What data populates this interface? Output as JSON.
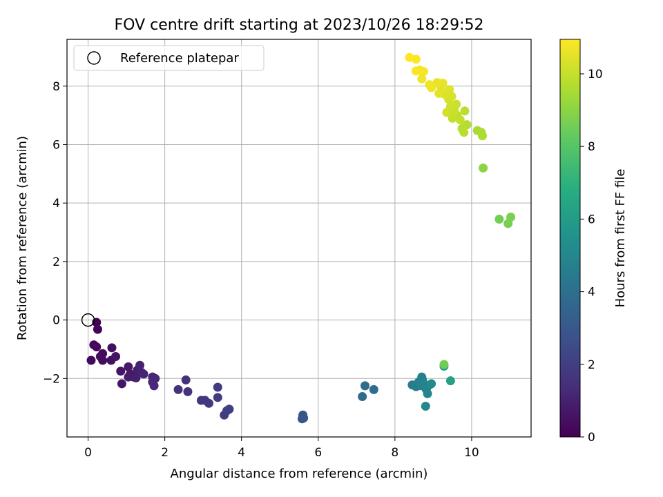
{
  "chart_data": {
    "type": "scatter",
    "title": "FOV centre drift starting at 2023/10/26 18:29:52",
    "xlabel": "Angular distance from reference (arcmin)",
    "ylabel": "Rotation from reference (arcmin)",
    "xlim": [
      -0.55,
      11.55
    ],
    "ylim": [
      -4.0,
      9.6
    ],
    "xticks": [
      0,
      2,
      4,
      6,
      8,
      10
    ],
    "yticks": [
      -2,
      0,
      2,
      4,
      6,
      8
    ],
    "grid": true,
    "legend": {
      "placement": "top-left",
      "entries": [
        "Reference platepar"
      ]
    },
    "reference_point": {
      "x": 0,
      "y": 0
    },
    "colorbar": {
      "label": "Hours from first FF file",
      "range": [
        0,
        10.95
      ],
      "ticks": [
        0,
        2,
        4,
        6,
        8,
        10
      ],
      "colormap": "viridis"
    },
    "points": [
      {
        "x": 0.22,
        "y": -0.08,
        "t": 0.05
      },
      {
        "x": 0.25,
        "y": -0.32,
        "t": 0.1
      },
      {
        "x": 0.15,
        "y": -0.85,
        "t": 0.15
      },
      {
        "x": 0.22,
        "y": -0.92,
        "t": 0.2
      },
      {
        "x": 0.08,
        "y": -1.38,
        "t": 0.25
      },
      {
        "x": 0.38,
        "y": -1.15,
        "t": 0.3
      },
      {
        "x": 0.38,
        "y": -1.38,
        "t": 0.35
      },
      {
        "x": 0.32,
        "y": -1.25,
        "t": 0.35
      },
      {
        "x": 0.62,
        "y": -0.95,
        "t": 0.45
      },
      {
        "x": 0.6,
        "y": -1.38,
        "t": 0.5
      },
      {
        "x": 0.72,
        "y": -1.25,
        "t": 0.55
      },
      {
        "x": 0.85,
        "y": -1.75,
        "t": 0.6
      },
      {
        "x": 0.88,
        "y": -2.18,
        "t": 0.65
      },
      {
        "x": 1.05,
        "y": -1.6,
        "t": 0.7
      },
      {
        "x": 1.1,
        "y": -1.85,
        "t": 0.75
      },
      {
        "x": 1.18,
        "y": -1.95,
        "t": 0.8
      },
      {
        "x": 1.05,
        "y": -1.95,
        "t": 0.85
      },
      {
        "x": 1.28,
        "y": -1.72,
        "t": 0.9
      },
      {
        "x": 1.25,
        "y": -1.98,
        "t": 0.95
      },
      {
        "x": 1.35,
        "y": -1.55,
        "t": 1.0
      },
      {
        "x": 1.4,
        "y": -1.8,
        "t": 1.05
      },
      {
        "x": 1.45,
        "y": -1.85,
        "t": 1.1
      },
      {
        "x": 1.68,
        "y": -1.95,
        "t": 1.15
      },
      {
        "x": 1.75,
        "y": -2.0,
        "t": 1.2
      },
      {
        "x": 1.68,
        "y": -2.12,
        "t": 1.25
      },
      {
        "x": 1.72,
        "y": -2.25,
        "t": 1.3
      },
      {
        "x": 2.35,
        "y": -2.38,
        "t": 1.5
      },
      {
        "x": 2.55,
        "y": -2.05,
        "t": 1.55
      },
      {
        "x": 2.6,
        "y": -2.45,
        "t": 1.6
      },
      {
        "x": 2.95,
        "y": -2.75,
        "t": 1.7
      },
      {
        "x": 3.05,
        "y": -2.75,
        "t": 1.75
      },
      {
        "x": 3.15,
        "y": -2.85,
        "t": 1.8
      },
      {
        "x": 3.38,
        "y": -2.3,
        "t": 1.85
      },
      {
        "x": 3.38,
        "y": -2.65,
        "t": 1.9
      },
      {
        "x": 3.55,
        "y": -3.25,
        "t": 1.95
      },
      {
        "x": 3.62,
        "y": -3.1,
        "t": 2.0
      },
      {
        "x": 3.68,
        "y": -3.05,
        "t": 2.05
      },
      {
        "x": 5.6,
        "y": -3.25,
        "t": 2.8
      },
      {
        "x": 5.62,
        "y": -3.35,
        "t": 2.85
      },
      {
        "x": 5.58,
        "y": -3.38,
        "t": 2.9
      },
      {
        "x": 7.15,
        "y": -2.62,
        "t": 3.8
      },
      {
        "x": 7.22,
        "y": -2.25,
        "t": 3.85
      },
      {
        "x": 7.45,
        "y": -2.38,
        "t": 3.9
      },
      {
        "x": 8.45,
        "y": -2.22,
        "t": 4.5
      },
      {
        "x": 8.55,
        "y": -2.28,
        "t": 4.6
      },
      {
        "x": 8.62,
        "y": -2.12,
        "t": 4.65
      },
      {
        "x": 8.7,
        "y": -1.95,
        "t": 4.7
      },
      {
        "x": 8.72,
        "y": -2.05,
        "t": 4.75
      },
      {
        "x": 8.68,
        "y": -2.25,
        "t": 4.8
      },
      {
        "x": 8.75,
        "y": -2.2,
        "t": 4.85
      },
      {
        "x": 8.82,
        "y": -2.38,
        "t": 4.9
      },
      {
        "x": 8.85,
        "y": -2.52,
        "t": 4.95
      },
      {
        "x": 8.8,
        "y": -2.95,
        "t": 5.0
      },
      {
        "x": 8.9,
        "y": -2.22,
        "t": 5.05
      },
      {
        "x": 8.95,
        "y": -2.18,
        "t": 5.1
      },
      {
        "x": 9.28,
        "y": -1.58,
        "t": 6.0
      },
      {
        "x": 9.45,
        "y": -2.08,
        "t": 6.2
      },
      {
        "x": 9.28,
        "y": -1.52,
        "t": 8.5
      },
      {
        "x": 10.72,
        "y": 3.45,
        "t": 8.6
      },
      {
        "x": 10.95,
        "y": 3.3,
        "t": 8.65
      },
      {
        "x": 11.02,
        "y": 3.52,
        "t": 8.7
      },
      {
        "x": 10.3,
        "y": 5.2,
        "t": 9.0
      },
      {
        "x": 10.15,
        "y": 6.48,
        "t": 9.5
      },
      {
        "x": 10.25,
        "y": 6.42,
        "t": 9.55
      },
      {
        "x": 10.28,
        "y": 6.3,
        "t": 9.6
      },
      {
        "x": 9.88,
        "y": 6.68,
        "t": 9.7
      },
      {
        "x": 9.75,
        "y": 6.55,
        "t": 9.75
      },
      {
        "x": 9.8,
        "y": 6.42,
        "t": 9.8
      },
      {
        "x": 9.82,
        "y": 7.15,
        "t": 9.85
      },
      {
        "x": 9.62,
        "y": 7.0,
        "t": 9.9
      },
      {
        "x": 9.7,
        "y": 6.85,
        "t": 9.95
      },
      {
        "x": 9.5,
        "y": 6.9,
        "t": 10.0
      },
      {
        "x": 9.55,
        "y": 7.15,
        "t": 10.05
      },
      {
        "x": 9.6,
        "y": 7.38,
        "t": 10.1
      },
      {
        "x": 9.45,
        "y": 7.3,
        "t": 10.15
      },
      {
        "x": 9.35,
        "y": 7.1,
        "t": 10.2
      },
      {
        "x": 9.4,
        "y": 7.55,
        "t": 10.25
      },
      {
        "x": 9.48,
        "y": 7.65,
        "t": 10.3
      },
      {
        "x": 9.3,
        "y": 7.72,
        "t": 10.35
      },
      {
        "x": 9.42,
        "y": 7.88,
        "t": 10.4
      },
      {
        "x": 9.2,
        "y": 7.98,
        "t": 10.45
      },
      {
        "x": 9.15,
        "y": 7.75,
        "t": 10.5
      },
      {
        "x": 9.25,
        "y": 8.1,
        "t": 10.55
      },
      {
        "x": 9.1,
        "y": 8.12,
        "t": 10.6
      },
      {
        "x": 8.95,
        "y": 7.95,
        "t": 10.65
      },
      {
        "x": 8.9,
        "y": 8.05,
        "t": 10.7
      },
      {
        "x": 8.7,
        "y": 8.25,
        "t": 10.75
      },
      {
        "x": 8.75,
        "y": 8.5,
        "t": 10.8
      },
      {
        "x": 8.65,
        "y": 8.55,
        "t": 10.82
      },
      {
        "x": 8.55,
        "y": 8.52,
        "t": 10.85
      },
      {
        "x": 8.55,
        "y": 8.92,
        "t": 10.9
      },
      {
        "x": 8.38,
        "y": 8.98,
        "t": 10.95
      }
    ]
  }
}
